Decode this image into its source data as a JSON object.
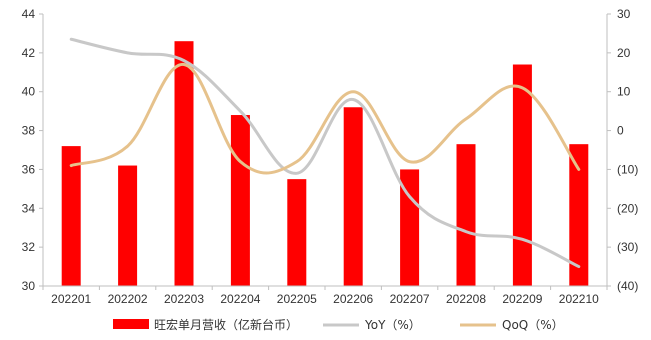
{
  "chart_data": {
    "type": "bar",
    "categories": [
      "202201",
      "202202",
      "202203",
      "202204",
      "202205",
      "202206",
      "202207",
      "202208",
      "202209",
      "202210"
    ],
    "series": [
      {
        "name": "旺宏单月营收（亿新台币）",
        "type": "bar",
        "axis": "left",
        "color": "#ff0000",
        "values": [
          37.2,
          36.2,
          42.6,
          38.8,
          35.5,
          39.2,
          36.0,
          37.3,
          41.4,
          37.3
        ]
      },
      {
        "name": "YoY（%）",
        "type": "line",
        "axis": "right",
        "color": "#c8c8c8",
        "values": [
          23.5,
          20.0,
          18.0,
          5.0,
          -11.0,
          8.0,
          -17.0,
          -26.0,
          -28.0,
          -35.0
        ]
      },
      {
        "name": "QoQ（%）",
        "type": "line",
        "axis": "right",
        "color": "#e6c28c",
        "values": [
          -9.0,
          -4.0,
          17.0,
          -8.0,
          -8.0,
          10.0,
          -8.0,
          3.0,
          11.0,
          -10.0
        ]
      }
    ],
    "y_left": {
      "ylim": [
        30,
        44
      ],
      "ticks": [
        30,
        32,
        34,
        36,
        38,
        40,
        42,
        44
      ],
      "tick_labels": [
        "30",
        "32",
        "34",
        "36",
        "38",
        "40",
        "42",
        "44"
      ]
    },
    "y_right": {
      "ylim": [
        -40,
        30
      ],
      "ticks": [
        -40,
        -30,
        -20,
        -10,
        0,
        10,
        20,
        30
      ],
      "tick_labels": [
        "(40)",
        "(30)",
        "(20)",
        "(10)",
        "0",
        "10",
        "20",
        "30"
      ]
    },
    "grid": false,
    "legend_position": "bottom"
  }
}
